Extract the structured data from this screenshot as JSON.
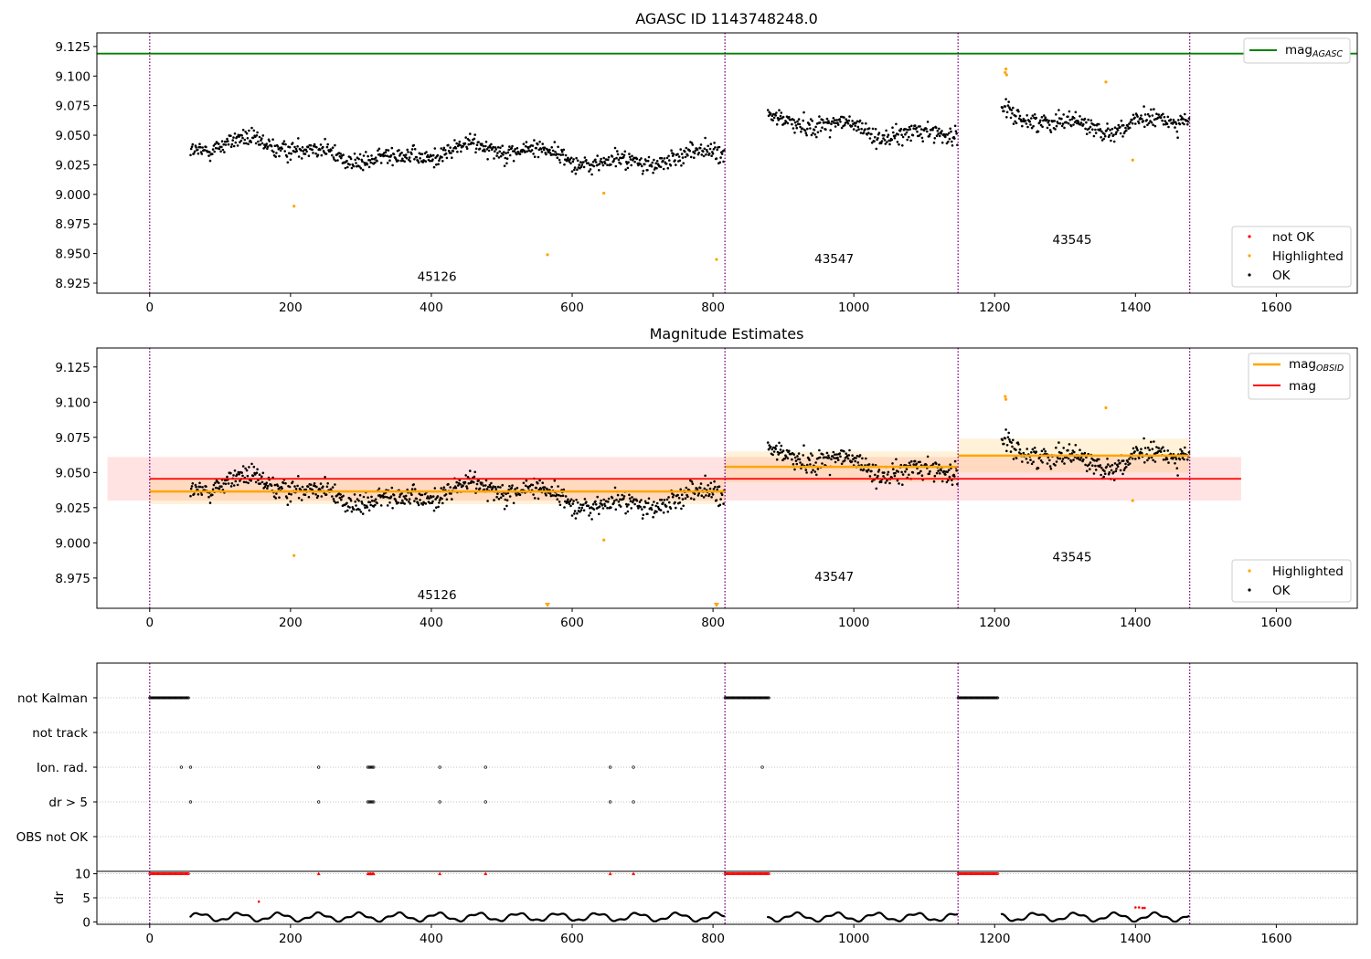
{
  "figure": {
    "title1": "AGASC ID 1143748248.0",
    "title2": "Magnitude Estimates"
  },
  "colors": {
    "ok": "#000000",
    "highlighted": "#ffa500",
    "not_ok": "#ff0000",
    "mag_agasc": "#008000",
    "mag_obsid": "#ffa500",
    "mag": "#ff0000",
    "boundary": "#800080"
  },
  "legend1": {
    "mag_agasc": "mag",
    "mag_agasc_sub": "AGASC",
    "not_ok": "not OK",
    "highlighted": "Highlighted",
    "ok": "OK"
  },
  "legend2": {
    "mag_obsid": "mag",
    "mag_obsid_sub": "OBSID",
    "mag": "mag",
    "highlighted": "Highlighted",
    "ok": "OK"
  },
  "chart_data": [
    {
      "type": "scatter",
      "title": "AGASC ID 1143748248.0",
      "xlim": [
        -75,
        1715
      ],
      "ylim": [
        8.9165,
        9.1365
      ],
      "xticks": [
        0,
        200,
        400,
        600,
        800,
        1000,
        1200,
        1400,
        1600
      ],
      "yticks": [
        8.925,
        8.95,
        8.975,
        9.0,
        9.025,
        9.05,
        9.075,
        9.1,
        9.125
      ],
      "mag_agasc": 9.119,
      "obs_boundaries": [
        0,
        817,
        1148,
        1477
      ],
      "obsids": [
        {
          "label": "45126",
          "x": 408,
          "y": 8.927
        },
        {
          "label": "43547",
          "x": 972,
          "y": 8.942
        },
        {
          "label": "43545",
          "x": 1310,
          "y": 8.958
        }
      ],
      "segments": [
        {
          "x0": 58,
          "x1": 816,
          "mean": 9.0385
        },
        {
          "x0": 878,
          "x1": 1147,
          "mean": 9.056
        },
        {
          "x0": 1210,
          "x1": 1476,
          "mean": 9.063
        }
      ],
      "highlighted": [
        [
          205,
          8.99
        ],
        [
          565,
          8.949
        ],
        [
          645,
          9.001
        ],
        [
          805,
          8.945
        ],
        [
          1215,
          9.103
        ],
        [
          1216,
          9.106
        ],
        [
          1217,
          9.101
        ],
        [
          1358,
          9.095
        ],
        [
          1396,
          9.029
        ]
      ]
    },
    {
      "type": "scatter",
      "title": "Magnitude Estimates",
      "xlim": [
        -75,
        1715
      ],
      "ylim": [
        8.9535,
        9.1385
      ],
      "xticks": [
        0,
        200,
        400,
        600,
        800,
        1000,
        1200,
        1400,
        1600
      ],
      "yticks": [
        8.975,
        9.0,
        9.025,
        9.05,
        9.075,
        9.1,
        9.125
      ],
      "mag": 9.0455,
      "mag_band": [
        9.03,
        9.061
      ],
      "mag_xrange": [
        0,
        1550
      ],
      "mag_obsid": [
        {
          "x0": 0,
          "x1": 817,
          "mean": 9.0365,
          "band": [
            9.0275,
            9.0455
          ]
        },
        {
          "x0": 817,
          "x1": 1148,
          "mean": 9.054,
          "band": [
            9.043,
            9.065
          ]
        },
        {
          "x0": 1148,
          "x1": 1477,
          "mean": 9.062,
          "band": [
            9.05,
            9.074
          ]
        }
      ],
      "obsids": [
        {
          "label": "45126",
          "x": 408,
          "y": 8.96
        },
        {
          "label": "43547",
          "x": 972,
          "y": 8.973
        },
        {
          "label": "43545",
          "x": 1310,
          "y": 8.987
        }
      ],
      "highlighted": [
        [
          205,
          8.991
        ],
        [
          645,
          9.002
        ],
        [
          1215,
          9.104
        ],
        [
          1216,
          9.102
        ],
        [
          1358,
          9.096
        ],
        [
          1396,
          9.03
        ]
      ],
      "highlighted_offscale": [
        565,
        805
      ]
    },
    {
      "type": "scatter",
      "categories": [
        "not Kalman",
        "not track",
        "Ion. rad.",
        "dr > 5",
        "OBS not OK"
      ],
      "flags": {
        "not Kalman": [
          [
            0,
            56
          ],
          [
            817,
            880
          ],
          [
            1148,
            1205
          ]
        ],
        "Ion. rad.": [
          45,
          58,
          240,
          310,
          312,
          314,
          316,
          318,
          412,
          477,
          654,
          687,
          870
        ],
        "dr > 5": [
          58,
          240,
          310,
          312,
          314,
          316,
          318,
          412,
          477,
          654,
          687
        ]
      }
    },
    {
      "type": "scatter",
      "ylabel": "dr",
      "ylim": [
        -0.5,
        10.5
      ],
      "yticks": [
        0,
        5,
        10
      ],
      "dr_high": [
        [
          0,
          56
        ],
        [
          817,
          880
        ],
        [
          1148,
          1205
        ]
      ],
      "dr_high_points": [
        240,
        310,
        312,
        314,
        316,
        318,
        412,
        477,
        654,
        687
      ],
      "dr_outliers": [
        [
          155,
          4.2
        ],
        [
          1400,
          3.0
        ],
        [
          1405,
          3.0
        ],
        [
          1410,
          2.9
        ],
        [
          1413,
          2.9
        ]
      ]
    }
  ]
}
